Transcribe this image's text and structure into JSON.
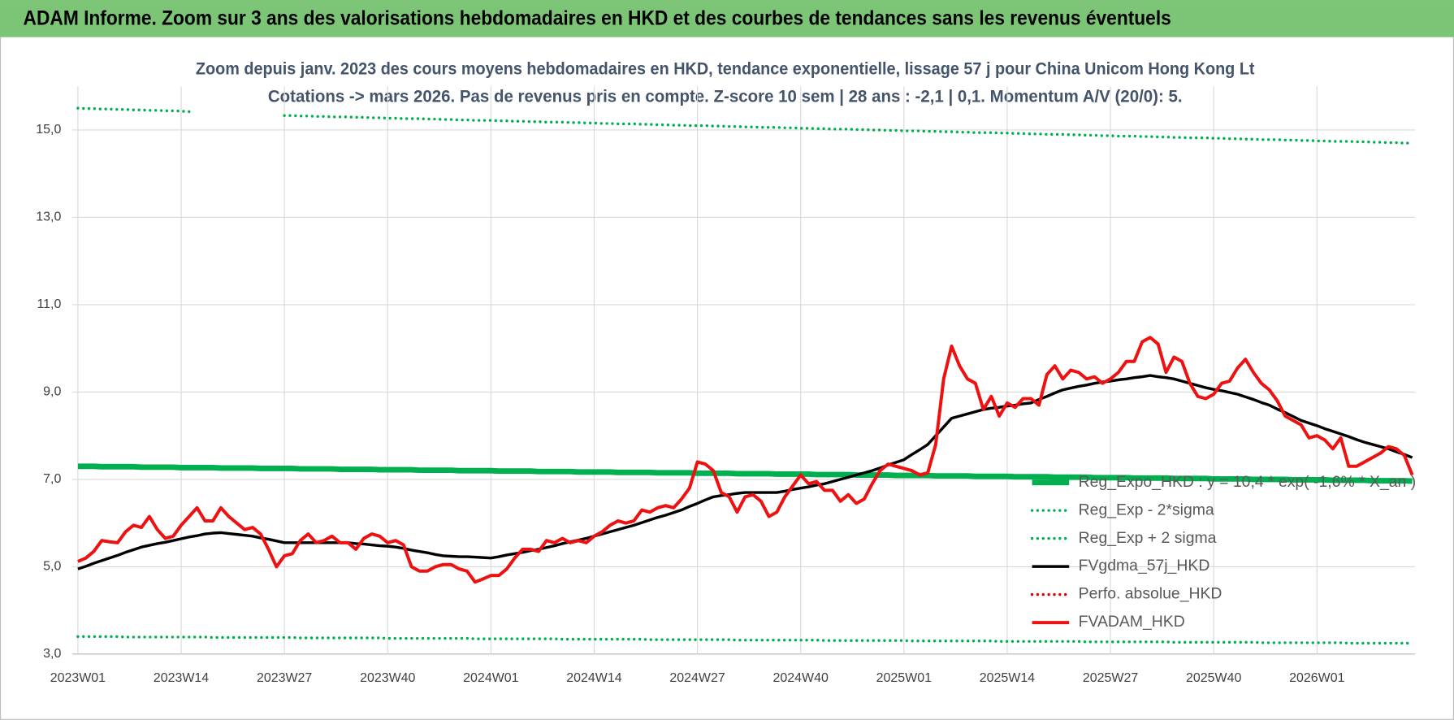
{
  "header": {
    "title": "ADAM Informe. Zoom sur 3 ans des valorisations hebdomadaires en HKD et des courbes de tendances sans les revenus éventuels"
  },
  "chart_data": {
    "type": "line",
    "title": "Zoom depuis janv. 2023 des cours moyens hebdomadaires en HKD, tendance exponentielle, lissage 57 j pour China Unicom Hong Kong Lt",
    "subtitle": "Cotations -> mars 2026. Pas de revenus pris en compte. Z-score 10 sem | 28 ans : -2,1 | 0,1. Momentum A/V (20/0): 5.",
    "categories": [
      "2023W01",
      null,
      null,
      null,
      null,
      null,
      null,
      null,
      null,
      null,
      null,
      null,
      null,
      "2023W14",
      null,
      null,
      null,
      null,
      null,
      null,
      null,
      null,
      null,
      null,
      null,
      null,
      "2023W27",
      null,
      null,
      null,
      null,
      null,
      null,
      null,
      null,
      null,
      null,
      null,
      null,
      "2023W40",
      null,
      null,
      null,
      null,
      null,
      null,
      null,
      null,
      null,
      null,
      null,
      null,
      "2024W01",
      null,
      null,
      null,
      null,
      null,
      null,
      null,
      null,
      null,
      null,
      null,
      null,
      "2024W14",
      null,
      null,
      null,
      null,
      null,
      null,
      null,
      null,
      null,
      null,
      null,
      null,
      "2024W27",
      null,
      null,
      null,
      null,
      null,
      null,
      null,
      null,
      null,
      null,
      null,
      null,
      "2024W40",
      null,
      null,
      null,
      null,
      null,
      null,
      null,
      null,
      null,
      null,
      null,
      null,
      "2025W01",
      null,
      null,
      null,
      null,
      null,
      null,
      null,
      null,
      null,
      null,
      null,
      null,
      "2025W14",
      null,
      null,
      null,
      null,
      null,
      null,
      null,
      null,
      null,
      null,
      null,
      null,
      "2025W27",
      null,
      null,
      null,
      null,
      null,
      null,
      null,
      null,
      null,
      null,
      null,
      null,
      "2025W40",
      null,
      null,
      null,
      null,
      null,
      null,
      null,
      null,
      null,
      null,
      null,
      null,
      "2026W01",
      null,
      null,
      null,
      null,
      null,
      null,
      null,
      null,
      null,
      null,
      null,
      null
    ],
    "ylim": [
      3,
      16
    ],
    "yticks": [
      {
        "value": 3,
        "label": "3,0"
      },
      {
        "value": 5,
        "label": "5,0"
      },
      {
        "value": 7,
        "label": "7,0"
      },
      {
        "value": 9,
        "label": "9,0"
      },
      {
        "value": 11,
        "label": "11,0"
      },
      {
        "value": 13,
        "label": "13,0"
      },
      {
        "value": 15,
        "label": "15,0"
      }
    ],
    "grid": true,
    "legend": "lower right",
    "series": [
      {
        "name": "Reg_Expo_HKD : y = 10,4 * exp( -1,6% * X_an )",
        "color": "#00b050",
        "dash": "solid",
        "width": 6,
        "values": [
          7.3,
          7.3,
          7.3,
          7.29,
          7.29,
          7.29,
          7.29,
          7.29,
          7.28,
          7.28,
          7.28,
          7.28,
          7.28,
          7.27,
          7.27,
          7.27,
          7.27,
          7.27,
          7.26,
          7.26,
          7.26,
          7.26,
          7.26,
          7.25,
          7.25,
          7.25,
          7.25,
          7.25,
          7.24,
          7.24,
          7.24,
          7.24,
          7.24,
          7.23,
          7.23,
          7.23,
          7.23,
          7.23,
          7.22,
          7.22,
          7.22,
          7.22,
          7.22,
          7.21,
          7.21,
          7.21,
          7.21,
          7.21,
          7.2,
          7.2,
          7.2,
          7.2,
          7.2,
          7.19,
          7.19,
          7.19,
          7.19,
          7.19,
          7.18,
          7.18,
          7.18,
          7.18,
          7.18,
          7.17,
          7.17,
          7.17,
          7.17,
          7.17,
          7.16,
          7.16,
          7.16,
          7.16,
          7.16,
          7.15,
          7.15,
          7.15,
          7.15,
          7.15,
          7.14,
          7.14,
          7.14,
          7.14,
          7.14,
          7.13,
          7.13,
          7.13,
          7.13,
          7.13,
          7.12,
          7.12,
          7.12,
          7.12,
          7.12,
          7.11,
          7.11,
          7.11,
          7.11,
          7.11,
          7.1,
          7.1,
          7.1,
          7.1,
          7.1,
          7.09,
          7.09,
          7.09,
          7.09,
          7.09,
          7.08,
          7.08,
          7.08,
          7.08,
          7.08,
          7.07,
          7.07,
          7.07,
          7.07,
          7.07,
          7.06,
          7.06,
          7.06,
          7.06,
          7.06,
          7.05,
          7.05,
          7.05,
          7.05,
          7.05,
          7.04,
          7.04,
          7.04,
          7.04,
          7.04,
          7.03,
          7.03,
          7.03,
          7.03,
          7.03,
          7.02,
          7.02,
          7.02,
          7.02,
          7.02,
          7.01,
          7.01,
          7.01,
          7.01,
          7.01,
          7.0,
          7.0,
          7.0,
          7.0,
          7.0,
          6.99,
          6.99,
          6.99,
          6.99,
          6.99,
          6.98,
          6.98,
          6.98,
          6.98,
          6.98,
          6.97,
          6.97,
          6.97,
          6.97,
          6.97,
          6.96
        ]
      },
      {
        "name": "Reg_Exp - 2*sigma",
        "color": "#00b050",
        "dash": "dotted",
        "width": 3,
        "values": [
          3.4,
          3.4,
          3.4,
          3.4,
          3.4,
          3.4,
          3.39,
          3.39,
          3.39,
          3.39,
          3.39,
          3.39,
          3.39,
          3.39,
          3.39,
          3.39,
          3.39,
          3.38,
          3.38,
          3.38,
          3.38,
          3.38,
          3.38,
          3.38,
          3.38,
          3.38,
          3.38,
          3.38,
          3.37,
          3.37,
          3.37,
          3.37,
          3.37,
          3.37,
          3.37,
          3.37,
          3.37,
          3.37,
          3.37,
          3.36,
          3.36,
          3.36,
          3.36,
          3.36,
          3.36,
          3.36,
          3.36,
          3.36,
          3.36,
          3.36,
          3.35,
          3.35,
          3.35,
          3.35,
          3.35,
          3.35,
          3.35,
          3.35,
          3.35,
          3.35,
          3.35,
          3.34,
          3.34,
          3.34,
          3.34,
          3.34,
          3.34,
          3.34,
          3.34,
          3.34,
          3.34,
          3.34,
          3.33,
          3.33,
          3.33,
          3.33,
          3.33,
          3.33,
          3.33,
          3.33,
          3.33,
          3.33,
          3.33,
          3.32,
          3.32,
          3.32,
          3.32,
          3.32,
          3.32,
          3.32,
          3.32,
          3.32,
          3.32,
          3.32,
          3.31,
          3.31,
          3.31,
          3.31,
          3.31,
          3.31,
          3.31,
          3.31,
          3.31,
          3.31,
          3.31,
          3.3,
          3.3,
          3.3,
          3.3,
          3.3,
          3.3,
          3.3,
          3.3,
          3.3,
          3.3,
          3.3,
          3.29,
          3.29,
          3.29,
          3.29,
          3.29,
          3.29,
          3.29,
          3.29,
          3.29,
          3.29,
          3.29,
          3.28,
          3.28,
          3.28,
          3.28,
          3.28,
          3.28,
          3.28,
          3.28,
          3.28,
          3.28,
          3.28,
          3.27,
          3.27,
          3.27,
          3.27,
          3.27,
          3.27,
          3.27,
          3.27,
          3.27,
          3.27,
          3.27,
          3.26,
          3.26,
          3.26,
          3.26,
          3.26,
          3.26,
          3.26,
          3.26,
          3.26,
          3.26,
          3.26,
          3.25,
          3.25,
          3.25,
          3.25,
          3.25,
          3.25,
          3.25,
          3.25,
          3.25
        ]
      },
      {
        "name": "Reg_Exp + 2 sigma",
        "color": "#00b050",
        "dash": "dotted",
        "width": 3,
        "values": [
          15.5,
          15.49,
          15.49,
          15.48,
          15.48,
          15.47,
          15.47,
          15.46,
          15.46,
          15.45,
          15.45,
          15.44,
          15.44,
          15.43,
          15.42,
          null,
          null,
          null,
          null,
          null,
          null,
          null,
          null,
          null,
          null,
          null,
          15.33,
          15.33,
          15.32,
          15.32,
          15.31,
          15.31,
          15.3,
          15.3,
          15.3,
          15.29,
          15.29,
          15.28,
          15.28,
          15.27,
          15.27,
          15.26,
          15.26,
          15.26,
          15.25,
          15.25,
          15.24,
          15.24,
          15.23,
          15.23,
          15.22,
          15.22,
          15.22,
          15.21,
          15.21,
          15.2,
          15.2,
          15.19,
          15.19,
          15.18,
          15.18,
          15.18,
          15.17,
          15.17,
          15.16,
          15.16,
          15.15,
          15.15,
          15.14,
          15.14,
          15.14,
          15.13,
          15.13,
          15.12,
          15.12,
          15.11,
          15.11,
          15.1,
          15.1,
          15.1,
          15.09,
          15.09,
          15.08,
          15.08,
          15.07,
          15.07,
          15.06,
          15.06,
          15.06,
          15.05,
          15.05,
          15.04,
          15.04,
          15.03,
          15.03,
          15.02,
          15.02,
          15.02,
          15.01,
          15.01,
          15.0,
          15.0,
          14.99,
          14.99,
          14.98,
          14.98,
          14.98,
          14.97,
          14.97,
          14.96,
          14.96,
          14.95,
          14.95,
          14.94,
          14.94,
          14.94,
          14.93,
          14.93,
          14.92,
          14.92,
          14.91,
          14.91,
          14.9,
          14.9,
          14.9,
          14.89,
          14.89,
          14.88,
          14.88,
          14.87,
          14.87,
          14.86,
          14.86,
          14.86,
          14.85,
          14.85,
          14.84,
          14.84,
          14.83,
          14.83,
          14.82,
          14.82,
          14.82,
          14.81,
          14.81,
          14.8,
          14.8,
          14.79,
          14.79,
          14.78,
          14.78,
          14.78,
          14.77,
          14.77,
          14.76,
          14.76,
          14.75,
          14.75,
          14.74,
          14.74,
          14.74,
          14.73,
          14.73,
          14.72,
          14.72,
          14.71,
          14.71,
          14.7,
          14.7
        ]
      },
      {
        "name": "FVgdma_57j_HKD",
        "color": "#000000",
        "dash": "solid",
        "width": 3,
        "values": [
          4.95,
          5.01,
          5.08,
          5.14,
          5.2,
          5.26,
          5.33,
          5.39,
          5.45,
          5.49,
          5.53,
          5.56,
          5.6,
          5.64,
          5.68,
          5.71,
          5.75,
          5.77,
          5.78,
          5.76,
          5.74,
          5.72,
          5.7,
          5.66,
          5.63,
          5.59,
          5.55,
          5.55,
          5.55,
          5.55,
          5.55,
          5.55,
          5.55,
          5.55,
          5.55,
          5.53,
          5.52,
          5.5,
          5.48,
          5.47,
          5.45,
          5.42,
          5.38,
          5.35,
          5.32,
          5.28,
          5.25,
          5.24,
          5.23,
          5.23,
          5.22,
          5.21,
          5.2,
          5.23,
          5.27,
          5.3,
          5.33,
          5.37,
          5.4,
          5.44,
          5.48,
          5.53,
          5.57,
          5.61,
          5.65,
          5.7,
          5.75,
          5.8,
          5.85,
          5.9,
          5.95,
          6.01,
          6.07,
          6.13,
          6.18,
          6.24,
          6.3,
          6.38,
          6.45,
          6.53,
          6.6,
          6.63,
          6.65,
          6.68,
          6.7,
          6.7,
          6.7,
          6.7,
          6.7,
          6.73,
          6.77,
          6.8,
          6.83,
          6.87,
          6.9,
          6.95,
          7.0,
          7.05,
          7.1,
          7.15,
          7.2,
          7.26,
          7.33,
          7.39,
          7.45,
          7.57,
          7.68,
          7.8,
          8.0,
          8.2,
          8.4,
          8.45,
          8.5,
          8.55,
          8.6,
          8.63,
          8.65,
          8.68,
          8.7,
          8.73,
          8.75,
          8.83,
          8.9,
          8.98,
          9.05,
          9.09,
          9.13,
          9.16,
          9.2,
          9.23,
          9.25,
          9.28,
          9.3,
          9.33,
          9.35,
          9.38,
          9.35,
          9.33,
          9.3,
          9.25,
          9.2,
          9.15,
          9.1,
          9.06,
          9.03,
          8.99,
          8.95,
          8.89,
          8.83,
          8.76,
          8.7,
          8.61,
          8.53,
          8.44,
          8.35,
          8.29,
          8.23,
          8.16,
          8.1,
          8.04,
          7.98,
          7.91,
          7.85,
          7.8,
          7.75,
          7.7,
          7.63,
          7.57,
          7.5
        ]
      },
      {
        "name": "Perfo. absolue_HKD",
        "color": "#e00000",
        "dash": "dotted",
        "width": 3
      },
      {
        "name": "FVADAM_HKD",
        "color": "#ee1111",
        "dash": "solid",
        "width": 3.5,
        "values": [
          5.12,
          5.2,
          5.35,
          5.6,
          5.57,
          5.55,
          5.8,
          5.95,
          5.9,
          6.15,
          5.85,
          5.65,
          5.7,
          5.95,
          6.15,
          6.35,
          6.05,
          6.05,
          6.35,
          6.15,
          6.0,
          5.85,
          5.9,
          5.75,
          5.4,
          5.0,
          5.25,
          5.3,
          5.6,
          5.75,
          5.55,
          5.6,
          5.7,
          5.55,
          5.55,
          5.4,
          5.65,
          5.75,
          5.7,
          5.55,
          5.6,
          5.5,
          5.0,
          4.9,
          4.9,
          5.0,
          5.05,
          5.05,
          4.95,
          4.9,
          4.65,
          4.72,
          4.8,
          4.8,
          4.95,
          5.2,
          5.4,
          5.4,
          5.35,
          5.6,
          5.55,
          5.65,
          5.55,
          5.6,
          5.55,
          5.7,
          5.8,
          5.95,
          6.05,
          6.0,
          6.05,
          6.3,
          6.25,
          6.35,
          6.4,
          6.35,
          6.55,
          6.8,
          7.4,
          7.35,
          7.2,
          6.7,
          6.6,
          6.25,
          6.6,
          6.65,
          6.5,
          6.15,
          6.25,
          6.6,
          6.85,
          7.1,
          6.9,
          6.95,
          6.75,
          6.75,
          6.5,
          6.65,
          6.45,
          6.55,
          6.9,
          7.2,
          7.35,
          7.3,
          7.25,
          7.2,
          7.1,
          7.15,
          7.8,
          9.3,
          10.05,
          9.6,
          9.3,
          9.2,
          8.6,
          8.9,
          8.45,
          8.75,
          8.65,
          8.85,
          8.85,
          8.7,
          9.4,
          9.6,
          9.3,
          9.5,
          9.45,
          9.3,
          9.35,
          9.2,
          9.3,
          9.45,
          9.7,
          9.7,
          10.15,
          10.25,
          10.1,
          9.45,
          9.8,
          9.7,
          9.2,
          8.9,
          8.85,
          8.95,
          9.2,
          9.25,
          9.55,
          9.75,
          9.45,
          9.2,
          9.05,
          8.8,
          8.45,
          8.35,
          8.25,
          7.95,
          8.0,
          7.9,
          7.7,
          7.95,
          7.3,
          7.3,
          7.4,
          7.5,
          7.6,
          7.75,
          7.7,
          7.55,
          7.1
        ]
      }
    ]
  }
}
